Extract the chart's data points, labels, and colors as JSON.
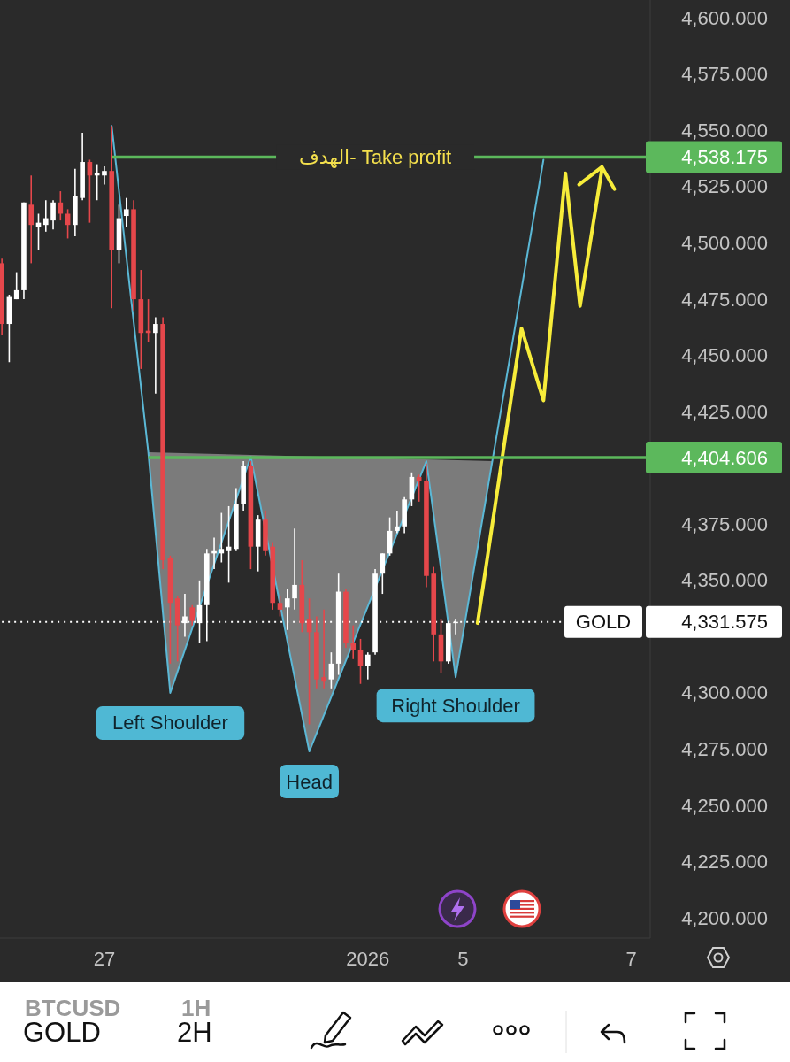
{
  "chart_data": {
    "type": "candlestick",
    "categories": [
      null,
      null,
      null,
      null,
      null,
      null,
      null,
      null,
      null,
      null,
      null,
      null,
      null,
      null,
      "27",
      null,
      null,
      null,
      null,
      null,
      null,
      null,
      null,
      null,
      null,
      null,
      null,
      null,
      null,
      null,
      null,
      null,
      null,
      null,
      null,
      null,
      null,
      null,
      null,
      null,
      null,
      null,
      null,
      null,
      null,
      null,
      null,
      null,
      null,
      null,
      "2026",
      null,
      null,
      null,
      null,
      null,
      null,
      null,
      null,
      null,
      null,
      null,
      null,
      "5",
      null,
      null,
      null,
      null,
      null,
      null,
      null,
      null,
      null,
      null,
      null,
      null,
      null,
      null,
      null,
      null,
      null,
      null,
      null,
      null,
      null,
      null,
      "7",
      null
    ],
    "ohlc": [
      [
        4491,
        4493,
        4459,
        4464
      ],
      [
        4464,
        4477,
        4447,
        4476
      ],
      [
        4475,
        4487,
        4475,
        4479
      ],
      [
        4479,
        4518,
        4475,
        4518
      ],
      [
        4517,
        4530,
        4491,
        4508
      ],
      [
        4507,
        4513,
        4497,
        4509
      ],
      [
        4508,
        4519,
        4505,
        4511
      ],
      [
        4510,
        4519,
        4506,
        4518
      ],
      [
        4518,
        4523,
        4510,
        4513
      ],
      [
        4513,
        4515,
        4502,
        4508
      ],
      [
        4508,
        4533,
        4503,
        4521
      ],
      [
        4520,
        4549,
        4519,
        4536
      ],
      [
        4536,
        4537,
        4509,
        4530
      ],
      [
        4530,
        4535,
        4519,
        4531
      ],
      [
        4530,
        4534,
        4526,
        4532
      ],
      [
        4532,
        4552,
        4471,
        4497
      ],
      [
        4497,
        4517,
        4491,
        4511
      ],
      [
        4512,
        4520,
        4507,
        4515
      ],
      [
        4515,
        4519,
        4470,
        4475
      ],
      [
        4475,
        4488,
        4444,
        4460
      ],
      [
        4461,
        4475,
        4456,
        4460
      ],
      [
        4460,
        4467,
        4433,
        4464
      ],
      [
        4464,
        4467,
        4355,
        4359
      ],
      [
        4360,
        4361,
        4313,
        4340
      ],
      [
        4342,
        4343,
        4314,
        4330
      ],
      [
        4331,
        4344,
        4325,
        4334
      ],
      [
        4338,
        4339,
        4330,
        4332
      ],
      [
        4331,
        4350,
        4322,
        4339
      ],
      [
        4339,
        4364,
        4323,
        4362
      ],
      [
        4362,
        4369,
        4355,
        4363
      ],
      [
        4362,
        4380,
        4358,
        4364
      ],
      [
        4363,
        4383,
        4349,
        4365
      ],
      [
        4364,
        4391,
        4363,
        4384
      ],
      [
        4384,
        4403,
        4381,
        4401
      ],
      [
        4401,
        4403,
        4355,
        4365
      ],
      [
        4365,
        4379,
        4354,
        4377
      ],
      [
        4377,
        4381,
        4361,
        4363
      ],
      [
        4365,
        4367,
        4337,
        4340
      ],
      [
        4340,
        4343,
        4334,
        4337
      ],
      [
        4338,
        4346,
        4328,
        4342
      ],
      [
        4342,
        4373,
        4337,
        4348
      ],
      [
        4348,
        4359,
        4327,
        4331
      ],
      [
        4333,
        4342,
        4286,
        4327
      ],
      [
        4327,
        4334,
        4302,
        4306
      ],
      [
        4307,
        4337,
        4302,
        4305
      ],
      [
        4306,
        4318,
        4302,
        4313
      ],
      [
        4313,
        4353,
        4308,
        4345
      ],
      [
        4345,
        4346,
        4320,
        4322
      ],
      [
        4322,
        4330,
        4315,
        4319
      ],
      [
        4319,
        4324,
        4304,
        4312
      ],
      [
        4312,
        4318,
        4306,
        4317
      ],
      [
        4318,
        4355,
        4317,
        4353
      ],
      [
        4353,
        4362,
        4344,
        4362
      ],
      [
        4362,
        4378,
        4361,
        4372
      ],
      [
        4372,
        4381,
        4371,
        4374
      ],
      [
        4374,
        4387,
        4371,
        4386
      ],
      [
        4386,
        4398,
        4383,
        4396
      ],
      [
        4396,
        4397,
        4385,
        4394
      ],
      [
        4394,
        4402,
        4347,
        4352
      ],
      [
        4353,
        4356,
        4314,
        4326
      ],
      [
        4326,
        4333,
        4309,
        4314
      ],
      [
        4314,
        4332,
        4313,
        4331
      ],
      [
        4331,
        4333,
        4326,
        4331.575
      ],
      null,
      null,
      null,
      null,
      null,
      null,
      null,
      null,
      null,
      null,
      null,
      null,
      null,
      null,
      null,
      null,
      null,
      null,
      null,
      null,
      null,
      null,
      null,
      null,
      null
    ],
    "series": [
      {
        "type": "line",
        "color": "#5bb8d6",
        "values": [
          null,
          null,
          null,
          null,
          null,
          null,
          null,
          null,
          null,
          null,
          null,
          null,
          null,
          null,
          null,
          4552,
          null,
          null,
          null,
          null,
          4407,
          null,
          null,
          4300,
          null,
          null,
          null,
          null,
          null,
          null,
          null,
          null,
          null,
          null,
          4405,
          null,
          null,
          null,
          null,
          null,
          null,
          null,
          4274,
          null,
          null,
          null,
          null,
          null,
          null,
          null,
          null,
          null,
          null,
          null,
          null,
          null,
          null,
          null,
          4403,
          null,
          null,
          null,
          4307,
          null,
          null,
          null,
          null,
          null,
          null,
          null,
          null,
          null,
          null,
          null,
          4537,
          null,
          null,
          null,
          null,
          null,
          null,
          null,
          null,
          null,
          null,
          null,
          null,
          null
        ]
      },
      {
        "type": "line",
        "color": "#f7ec3a",
        "values": [
          null,
          null,
          null,
          null,
          null,
          null,
          null,
          null,
          null,
          null,
          null,
          null,
          null,
          null,
          null,
          null,
          null,
          null,
          null,
          null,
          null,
          null,
          null,
          null,
          null,
          null,
          null,
          null,
          null,
          null,
          null,
          null,
          null,
          null,
          null,
          null,
          null,
          null,
          null,
          null,
          null,
          null,
          null,
          null,
          null,
          null,
          null,
          null,
          null,
          null,
          null,
          null,
          null,
          null,
          null,
          null,
          null,
          null,
          null,
          null,
          null,
          null,
          null,
          null,
          null,
          4331,
          null,
          null,
          null,
          null,
          null,
          4462,
          null,
          null,
          4430,
          null,
          null,
          4531,
          null,
          4472,
          null,
          null,
          4533,
          null,
          null,
          null,
          null,
          null
        ]
      }
    ],
    "ylim": [
      4191,
      4608
    ],
    "yticks": [
      {
        "value": 4200,
        "label": "4,200.000"
      },
      {
        "value": 4225,
        "label": "4,225.000"
      },
      {
        "value": 4250,
        "label": "4,250.000"
      },
      {
        "value": 4275,
        "label": "4,275.000"
      },
      {
        "value": 4300,
        "label": "4,300.000"
      },
      {
        "value": 4350,
        "label": "4,350.000"
      },
      {
        "value": 4375,
        "label": "4,375.000"
      },
      {
        "value": 4425,
        "label": "4,425.000"
      },
      {
        "value": 4450,
        "label": "4,450.000"
      },
      {
        "value": 4475,
        "label": "4,475.000"
      },
      {
        "value": 4500,
        "label": "4,500.000"
      },
      {
        "value": 4525,
        "label": "4,525.000"
      },
      {
        "value": 4550,
        "label": "4,550.000"
      },
      {
        "value": 4575,
        "label": "4,575.000"
      },
      {
        "value": 4600,
        "label": "4,600.000"
      }
    ],
    "ref_lines": [
      {
        "axis": "y",
        "value": 4538.175,
        "label": "4,538.175",
        "color": "#5cb85c"
      },
      {
        "axis": "y",
        "value": 4404.606,
        "label": "4,404.606",
        "color": "#5cb85c"
      },
      {
        "axis": "y",
        "value": 4331.575,
        "label": "4,331.575",
        "color": "#ffffff",
        "line_style": "dotted"
      }
    ],
    "annotations": [
      {
        "text": "الهدف- Take profit",
        "y": 4538.175
      },
      {
        "text": "Left Shoulder",
        "y": 4300
      },
      {
        "text": "Head",
        "y": 4274
      },
      {
        "text": "Right Shoulder",
        "y": 4307
      },
      {
        "text": "GOLD",
        "y": 4331.575
      },
      "BTCUSD",
      "1H",
      "GOLD",
      "2H"
    ],
    "grid": false
  }
}
